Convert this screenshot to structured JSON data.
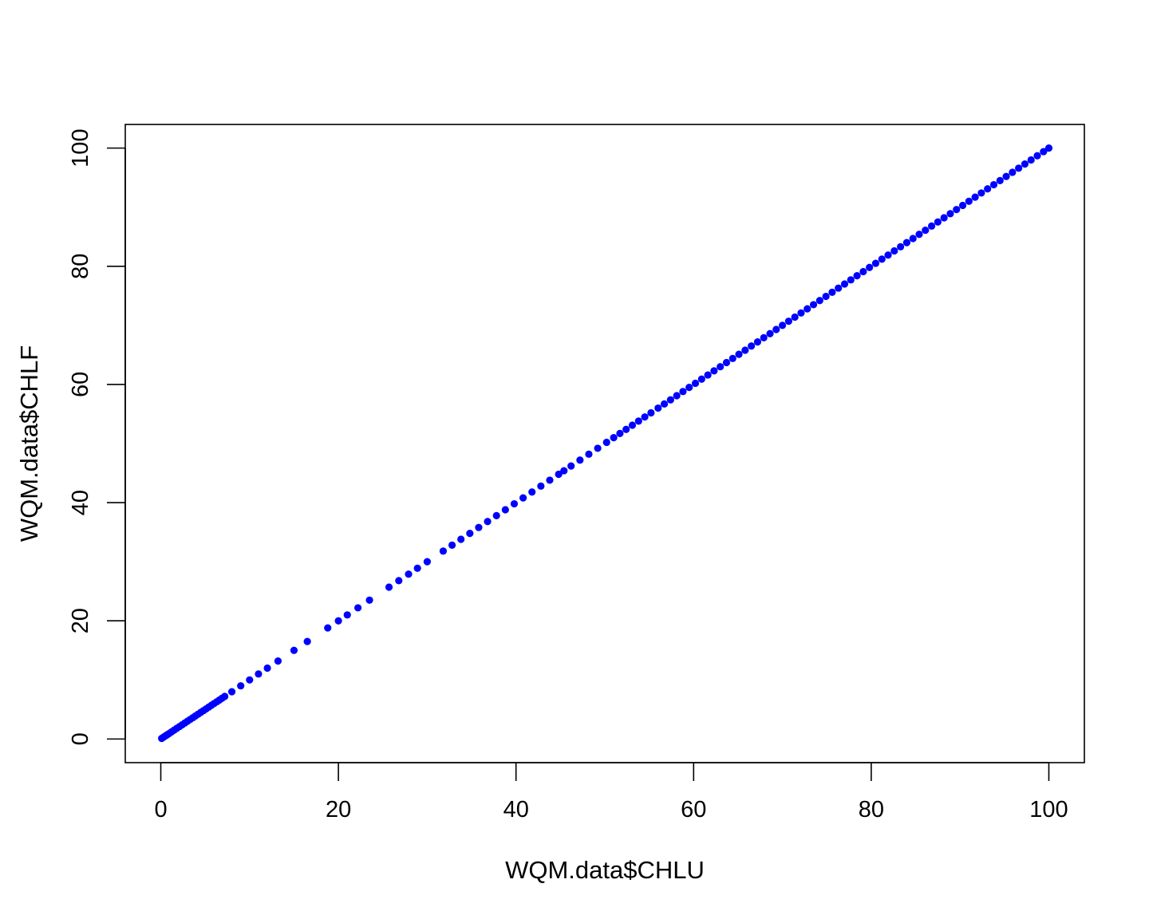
{
  "chart_data": {
    "type": "scatter",
    "title": "",
    "xlabel": "WQM.data$CHLU",
    "ylabel": "WQM.data$CHLF",
    "xlim": [
      -4,
      104
    ],
    "ylim": [
      -4,
      104
    ],
    "x_ticks": [
      0,
      20,
      40,
      60,
      80,
      100
    ],
    "y_ticks": [
      0,
      20,
      40,
      60,
      80,
      100
    ],
    "x_tick_labels": [
      "0",
      "20",
      "40",
      "60",
      "80",
      "100"
    ],
    "y_tick_labels": [
      "0",
      "20",
      "40",
      "60",
      "80",
      "100"
    ],
    "grid": false,
    "legend": "none",
    "point_color": "#0000ff",
    "series": [
      {
        "relationship": "y = x",
        "x": [
          0.1,
          0.3,
          0.5,
          0.7,
          0.9,
          1.2,
          1.5,
          1.8,
          2.1,
          2.4,
          2.7,
          3.0,
          3.3,
          3.6,
          3.9,
          4.2,
          4.5,
          4.8,
          5.1,
          5.4,
          5.7,
          6.0,
          6.3,
          6.6,
          6.9,
          7.2,
          8.0,
          9.0,
          10.0,
          11.0,
          12.0,
          13.2,
          15.0,
          16.5,
          18.8,
          20.0,
          21.0,
          22.2,
          23.5,
          25.7,
          26.8,
          27.9,
          28.9,
          30.0,
          31.8,
          32.8,
          33.8,
          34.8,
          35.8,
          36.8,
          37.8,
          38.8,
          39.8,
          40.8,
          41.8,
          42.8,
          43.8,
          44.8,
          45.4,
          46.2,
          47.2,
          48.2,
          49.2,
          50.2,
          51.0,
          51.7,
          52.4,
          53.1,
          53.8,
          54.5,
          55.2,
          56.0,
          56.7,
          57.4,
          58.1,
          58.8,
          59.5,
          60.2,
          60.9,
          61.6,
          62.3,
          63.0,
          63.7,
          64.4,
          65.1,
          65.8,
          66.5,
          67.2,
          67.9,
          68.6,
          69.3,
          70.0,
          70.7,
          71.4,
          72.1,
          72.8,
          73.5,
          74.2,
          74.9,
          75.6,
          76.3,
          77.0,
          77.7,
          78.4,
          79.1,
          79.8,
          80.5,
          81.2,
          81.9,
          82.6,
          83.3,
          84.0,
          84.7,
          85.4,
          86.1,
          86.8,
          87.5,
          88.2,
          88.9,
          89.6,
          90.3,
          91.0,
          91.7,
          92.4,
          93.1,
          93.8,
          94.5,
          95.2,
          95.9,
          96.6,
          97.3,
          98.0,
          98.7,
          99.4,
          100.0
        ],
        "y": [
          0.1,
          0.3,
          0.5,
          0.7,
          0.9,
          1.2,
          1.5,
          1.8,
          2.1,
          2.4,
          2.7,
          3.0,
          3.3,
          3.6,
          3.9,
          4.2,
          4.5,
          4.8,
          5.1,
          5.4,
          5.7,
          6.0,
          6.3,
          6.6,
          6.9,
          7.2,
          8.0,
          9.0,
          10.0,
          11.0,
          12.0,
          13.2,
          15.0,
          16.5,
          18.8,
          20.0,
          21.0,
          22.2,
          23.5,
          25.7,
          26.8,
          27.9,
          28.9,
          30.0,
          31.8,
          32.8,
          33.8,
          34.8,
          35.8,
          36.8,
          37.8,
          38.8,
          39.8,
          40.8,
          41.8,
          42.8,
          43.8,
          44.8,
          45.4,
          46.2,
          47.2,
          48.2,
          49.2,
          50.2,
          51.0,
          51.7,
          52.4,
          53.1,
          53.8,
          54.5,
          55.2,
          56.0,
          56.7,
          57.4,
          58.1,
          58.8,
          59.5,
          60.2,
          60.9,
          61.6,
          62.3,
          63.0,
          63.7,
          64.4,
          65.1,
          65.8,
          66.5,
          67.2,
          67.9,
          68.6,
          69.3,
          70.0,
          70.7,
          71.4,
          72.1,
          72.8,
          73.5,
          74.2,
          74.9,
          75.6,
          76.3,
          77.0,
          77.7,
          78.4,
          79.1,
          79.8,
          80.5,
          81.2,
          81.9,
          82.6,
          83.3,
          84.0,
          84.7,
          85.4,
          86.1,
          86.8,
          87.5,
          88.2,
          88.9,
          89.6,
          90.3,
          91.0,
          91.7,
          92.4,
          93.1,
          93.8,
          94.5,
          95.2,
          95.9,
          96.6,
          97.3,
          98.0,
          98.7,
          99.4,
          100.0
        ]
      }
    ]
  }
}
